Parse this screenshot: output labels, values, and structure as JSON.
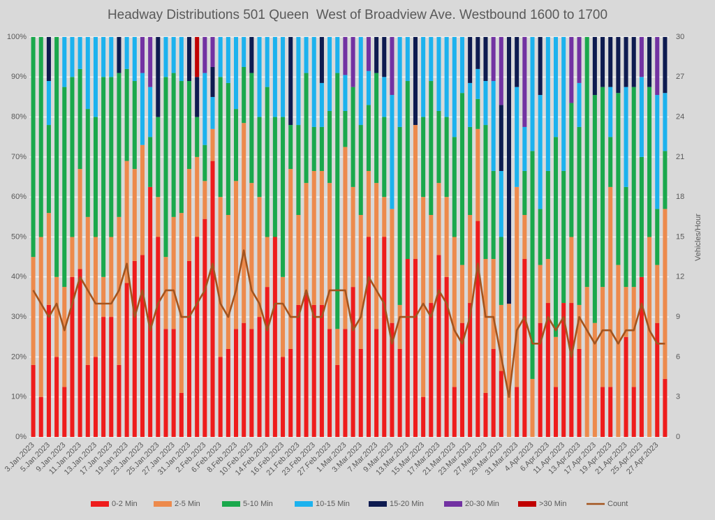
{
  "chart_data": {
    "type": "bar",
    "stacked": true,
    "title": "Headway Distributions 501 Queen  West of Broadview Ave. Westbound 1600 to 1700",
    "y2label": "Vehicles/Hour",
    "grid": true,
    "legend": "bottom",
    "categories": [
      "3.Jan.2023",
      null,
      "5.Jan.2023",
      null,
      "9.Jan.2023",
      null,
      "11.Jan.2023",
      null,
      "13.Jan.2023",
      null,
      "17.Jan.2023",
      null,
      "19.Jan.2023",
      null,
      "23.Jan.2023",
      null,
      "25.Jan.2023",
      null,
      "27.Jan.2023",
      null,
      "31.Jan.2023",
      null,
      "2.Feb.2023",
      null,
      "6.Feb.2023",
      null,
      "8.Feb.2023",
      null,
      "10.Feb.2023",
      null,
      "14.Feb.2023",
      null,
      "16.Feb.2023",
      null,
      "21.Feb.2023",
      null,
      "23.Feb.2023",
      null,
      "27.Feb.2023",
      null,
      "1.Mar.2023",
      null,
      "3.Mar.2023",
      null,
      "7.Mar.2023",
      null,
      "9.Mar.2023",
      null,
      "13.Mar.2023",
      null,
      "15.Mar.2023",
      null,
      "17.Mar.2023",
      null,
      "21.Mar.2023",
      null,
      "23.Mar.2023",
      null,
      "27.Mar.2023",
      null,
      "29.Mar.2023",
      null,
      "31.Mar.2023",
      null,
      "4.Apr.2023",
      null,
      "6.Apr.2023",
      null,
      "11.Apr.2023",
      null,
      "13.Apr.2023",
      null,
      "17.Apr.2023",
      null,
      "19.Apr.2023",
      null,
      "21.Apr.2023",
      null,
      "25.Apr.2023",
      null,
      "27.Apr.2023",
      null
    ],
    "ylim": [
      0,
      100
    ],
    "yticks": [
      {
        "value": 0,
        "label": "0%"
      },
      {
        "value": 10,
        "label": "10%"
      },
      {
        "value": 20,
        "label": "20%"
      },
      {
        "value": 30,
        "label": "30%"
      },
      {
        "value": 40,
        "label": "40%"
      },
      {
        "value": 50,
        "label": "50%"
      },
      {
        "value": 60,
        "label": "60%"
      },
      {
        "value": 70,
        "label": "70%"
      },
      {
        "value": 80,
        "label": "80%"
      },
      {
        "value": 90,
        "label": "90%"
      },
      {
        "value": 100,
        "label": "100%"
      }
    ],
    "y2lim": [
      0,
      30
    ],
    "y2ticks": [
      0,
      3,
      6,
      9,
      12,
      15,
      18,
      21,
      24,
      27,
      30
    ],
    "series": [
      {
        "name": "0-2 Min",
        "color": "#ee1c1c",
        "values": [
          18,
          10,
          33,
          20,
          12.5,
          40,
          42,
          18,
          20,
          30,
          30,
          18,
          38.5,
          44,
          45.5,
          62.5,
          50,
          27,
          27,
          11,
          44,
          50,
          54.5,
          69,
          20,
          22,
          27,
          28.5,
          27,
          30,
          37.5,
          50,
          20,
          22,
          33,
          36,
          33,
          33,
          27,
          18,
          27,
          37.5,
          22,
          50,
          27,
          50,
          28.5,
          22,
          44.5,
          44.5,
          10,
          33.5,
          45.5,
          40,
          12.5,
          28.5,
          33.5,
          54,
          11,
          22,
          16.5,
          0,
          12.5,
          44.5,
          0,
          28.5,
          33.5,
          12.5,
          33.5,
          33.5,
          22,
          0,
          0,
          12.5,
          12.5,
          0,
          25,
          12.5,
          40,
          0,
          28.5,
          14.5
        ]
      },
      {
        "name": "2-5 Min",
        "color": "#ed8a4c",
        "values": [
          27,
          40,
          23,
          20,
          25,
          10,
          25,
          37,
          30,
          10,
          20,
          37,
          30.5,
          23,
          27.5,
          0,
          10,
          18,
          28,
          45,
          23,
          20,
          9.5,
          8,
          40,
          33.5,
          37,
          50,
          36.5,
          30,
          12.5,
          0,
          20,
          45,
          22.5,
          27.5,
          33.5,
          33.5,
          36.5,
          9,
          45.5,
          25,
          33.5,
          16.5,
          36.5,
          10,
          28.5,
          11,
          0,
          33.5,
          50,
          22,
          18,
          20,
          37.5,
          14.5,
          22,
          23,
          33.5,
          22.5,
          16.5,
          33.3,
          50,
          11,
          14.5,
          14.5,
          11,
          12.5,
          0,
          16.5,
          11,
          37.5,
          28.5,
          25,
          50,
          43,
          12.5,
          25,
          0,
          50,
          14.5,
          42.5
        ]
      },
      {
        "name": "5-10 Min",
        "color": "#1aa84c",
        "values": [
          55,
          50,
          22,
          60,
          50,
          40,
          25,
          27,
          30,
          50,
          40,
          36,
          23,
          22,
          0,
          12.5,
          20,
          45,
          36,
          33,
          22,
          10,
          9,
          0,
          30,
          33,
          18,
          14,
          27.5,
          20,
          37.5,
          30,
          40,
          11,
          22.5,
          27.5,
          11,
          11,
          18,
          64,
          9,
          25,
          22.5,
          16.5,
          27.5,
          20,
          0,
          44.5,
          44.5,
          0,
          20,
          33.5,
          18,
          20,
          25,
          43,
          22,
          7.5,
          33.5,
          22,
          17,
          0,
          0,
          11,
          57,
          14,
          22,
          50,
          33,
          33.5,
          44.5,
          62.5,
          57,
          50,
          12.5,
          43,
          25,
          50,
          30,
          37.5,
          14,
          14.5
        ]
      },
      {
        "name": "10-15 Min",
        "color": "#1cb2ee",
        "values": [
          0,
          0,
          11,
          0,
          12.5,
          10,
          8,
          18,
          20,
          10,
          10,
          0,
          8,
          11,
          18,
          12.5,
          0,
          10,
          9,
          11,
          0,
          0,
          18,
          8,
          10,
          11.5,
          18,
          7.5,
          0,
          20,
          12.5,
          20,
          20,
          0,
          22,
          9,
          22.5,
          11,
          18.5,
          9,
          9,
          0,
          22,
          8.5,
          0,
          10,
          28.5,
          22.5,
          11,
          0,
          20,
          11,
          18.5,
          20,
          25,
          14,
          11,
          7.5,
          11,
          22.5,
          16.5,
          0,
          25,
          11,
          28.5,
          28.5,
          33.5,
          25,
          33.5,
          0,
          11,
          0,
          0,
          0,
          12.5,
          0,
          25,
          0,
          20,
          0,
          28.5,
          14.5
        ]
      },
      {
        "name": "15-20 Min",
        "color": "#0e1b50",
        "values": [
          0,
          0,
          11,
          0,
          0,
          0,
          0,
          0,
          0,
          0,
          0,
          9,
          0,
          0,
          0,
          0,
          20,
          0,
          0,
          0,
          11,
          10,
          0,
          7.5,
          0,
          0,
          0,
          0,
          9,
          0,
          0,
          0,
          0,
          22,
          0,
          0,
          0,
          11.5,
          0,
          0,
          0,
          0,
          0,
          0,
          9,
          10,
          0,
          0,
          0,
          22,
          0,
          0,
          0,
          0,
          0,
          0,
          11.5,
          8,
          11,
          0,
          16.5,
          66.7,
          12.5,
          0,
          0,
          14.5,
          0,
          0,
          0,
          0,
          0,
          0,
          14.5,
          12.5,
          12.5,
          14,
          12.5,
          12.5,
          0,
          12.5,
          0,
          14
        ]
      },
      {
        "name": "20-30 Min",
        "color": "#7232a2",
        "values": [
          0,
          0,
          0,
          0,
          0,
          0,
          0,
          0,
          0,
          0,
          0,
          0,
          0,
          0,
          9,
          12.5,
          0,
          0,
          0,
          0,
          0,
          0,
          9,
          7.5,
          0,
          0,
          0,
          0,
          0,
          0,
          0,
          0,
          0,
          0,
          0,
          0,
          0,
          0,
          0,
          0,
          9.5,
          12.5,
          0,
          8.5,
          0,
          0,
          14.5,
          0,
          0,
          0,
          0,
          0,
          0,
          0,
          0,
          0,
          0,
          0,
          0,
          11,
          17,
          0,
          0,
          22.5,
          0,
          0,
          0,
          0,
          0,
          16.5,
          11.5,
          0,
          0,
          0,
          0,
          0,
          0,
          0,
          10,
          0,
          14.5,
          0
        ]
      },
      {
        "name": ">30 Min",
        "color": "#c00000",
        "values": [
          0,
          0,
          0,
          0,
          0,
          0,
          0,
          0,
          0,
          0,
          0,
          0,
          0,
          0,
          0,
          0,
          0,
          0,
          0,
          0,
          0,
          10,
          0,
          0,
          0,
          0,
          0,
          0,
          0,
          0,
          0,
          0,
          0,
          0,
          0,
          0,
          0,
          0,
          0,
          0,
          0,
          0,
          0,
          0,
          0,
          0,
          0,
          0,
          0,
          0,
          0,
          0,
          0,
          0,
          0,
          0,
          0,
          0,
          0,
          0,
          0,
          0,
          0,
          0,
          0,
          0,
          0,
          0,
          0,
          0,
          0,
          0,
          0,
          0,
          0,
          0,
          0,
          0,
          0,
          0,
          0,
          0
        ]
      },
      {
        "name": "Count",
        "color": "#a3541e",
        "type": "line",
        "axis": "y2",
        "values": [
          11,
          10,
          9,
          10,
          8,
          10,
          12,
          11,
          10,
          10,
          10,
          11,
          13,
          9,
          11,
          8,
          10,
          11,
          11,
          9,
          9,
          10,
          11,
          13,
          10,
          9,
          11,
          14,
          11,
          10,
          8,
          10,
          10,
          9,
          9,
          11,
          9,
          9,
          11,
          11,
          11,
          8,
          9,
          12,
          11,
          10,
          7,
          9,
          9,
          9,
          10,
          9,
          11,
          10,
          8,
          7,
          9,
          13,
          9,
          9,
          6,
          3,
          8,
          9,
          7,
          7,
          9,
          8,
          9,
          6,
          9,
          8,
          7,
          8,
          8,
          7,
          8,
          8,
          10,
          8,
          7,
          7
        ]
      }
    ]
  }
}
